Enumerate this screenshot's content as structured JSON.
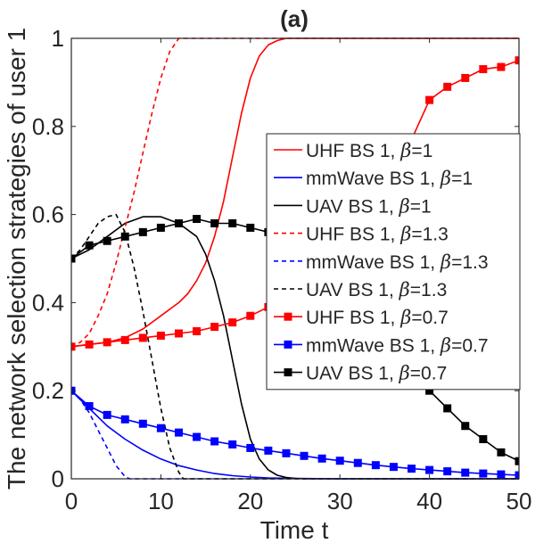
{
  "chart_data": {
    "type": "line",
    "title": "(a)",
    "xlabel": "Time t",
    "ylabel": "The network selection strategies of user 1",
    "xlim": [
      0,
      50
    ],
    "ylim": [
      0,
      1
    ],
    "xticks": [
      0,
      10,
      20,
      30,
      40,
      50
    ],
    "yticks": [
      0,
      0.2,
      0.4,
      0.6,
      0.8,
      1
    ],
    "xtick_labels": [
      "0",
      "10",
      "20",
      "30",
      "40",
      "50"
    ],
    "ytick_labels": [
      "0",
      "0.2",
      "0.4",
      "0.6",
      "0.8",
      "1"
    ],
    "grid": false,
    "legend_position": "right",
    "series": [
      {
        "name": "UHF BS 1, β=1",
        "legend_prefix": "UHF BS 1, ",
        "legend_param": "β",
        "legend_value": "=1",
        "color": "#ff0000",
        "dash": "solid",
        "marker": "none",
        "x": [
          0,
          2,
          4,
          6,
          8,
          10,
          12,
          13,
          14,
          15,
          16,
          17,
          18,
          19,
          20,
          21,
          22,
          23,
          24,
          25,
          27,
          30,
          35,
          40,
          45,
          50
        ],
        "y": [
          0.3,
          0.305,
          0.31,
          0.32,
          0.34,
          0.37,
          0.4,
          0.42,
          0.45,
          0.49,
          0.55,
          0.63,
          0.73,
          0.83,
          0.91,
          0.96,
          0.985,
          0.995,
          1.0,
          1.0,
          1.0,
          1.0,
          1.0,
          1.0,
          1.0,
          1.0
        ]
      },
      {
        "name": "mmWave BS 1, β=1",
        "legend_prefix": "mmWave BS 1, ",
        "legend_param": "β",
        "legend_value": "=1",
        "color": "#0000ff",
        "dash": "solid",
        "marker": "none",
        "x": [
          0,
          2,
          4,
          6,
          8,
          10,
          12,
          14,
          16,
          18,
          20,
          22,
          25,
          30,
          40,
          50
        ],
        "y": [
          0.2,
          0.16,
          0.12,
          0.09,
          0.065,
          0.045,
          0.03,
          0.02,
          0.012,
          0.007,
          0.004,
          0.002,
          0.001,
          0.0,
          0.0,
          0.0
        ]
      },
      {
        "name": "UAV BS 1, β=1",
        "legend_prefix": "UAV BS 1, ",
        "legend_param": "β",
        "legend_value": "=1",
        "color": "#000000",
        "dash": "solid",
        "marker": "none",
        "x": [
          0,
          2,
          4,
          6,
          8,
          10,
          12,
          14,
          15,
          16,
          17,
          18,
          19,
          20,
          21,
          22,
          23,
          24,
          25,
          26,
          27,
          28,
          30,
          35,
          40,
          50
        ],
        "y": [
          0.5,
          0.52,
          0.55,
          0.58,
          0.595,
          0.595,
          0.58,
          0.55,
          0.51,
          0.45,
          0.37,
          0.27,
          0.17,
          0.09,
          0.045,
          0.02,
          0.008,
          0.003,
          0.001,
          0.0,
          0.0,
          0.0,
          0.0,
          0.0,
          0.0,
          0.0
        ]
      },
      {
        "name": "UHF BS 1, β=1.3",
        "legend_prefix": "UHF BS 1, ",
        "legend_param": "β",
        "legend_value": "=1.3",
        "color": "#ff0000",
        "dash": "dashed",
        "marker": "none",
        "x": [
          0,
          1,
          2,
          3,
          4,
          5,
          6,
          7,
          8,
          9,
          10,
          11,
          12,
          13,
          20,
          30,
          40,
          50
        ],
        "y": [
          0.3,
          0.31,
          0.33,
          0.37,
          0.42,
          0.49,
          0.57,
          0.65,
          0.74,
          0.83,
          0.91,
          0.97,
          1.0,
          1.0,
          1.0,
          1.0,
          1.0,
          1.0
        ]
      },
      {
        "name": "mmWave BS 1, β=1.3",
        "legend_prefix": "mmWave BS 1, ",
        "legend_param": "β",
        "legend_value": "=1.3",
        "color": "#0000ff",
        "dash": "dashed",
        "marker": "none",
        "x": [
          0,
          1,
          2,
          3,
          4,
          5,
          6,
          6.5,
          10,
          20,
          30,
          40,
          50
        ],
        "y": [
          0.2,
          0.18,
          0.15,
          0.11,
          0.07,
          0.03,
          0.005,
          0.0,
          0.0,
          0.0,
          0.0,
          0.0,
          0.0
        ]
      },
      {
        "name": "UAV BS 1, β=1.3",
        "legend_prefix": "UAV BS 1, ",
        "legend_param": "β",
        "legend_value": "=1.3",
        "color": "#000000",
        "dash": "dashed",
        "marker": "none",
        "x": [
          0,
          1,
          2,
          3,
          4,
          5,
          6,
          7,
          8,
          9,
          10,
          11,
          12,
          12.5,
          20,
          30,
          40,
          50
        ],
        "y": [
          0.5,
          0.52,
          0.55,
          0.58,
          0.595,
          0.6,
          0.56,
          0.48,
          0.38,
          0.27,
          0.16,
          0.07,
          0.015,
          0.0,
          0.0,
          0.0,
          0.0,
          0.0
        ]
      },
      {
        "name": "UHF BS 1, β=0.7",
        "legend_prefix": "UHF BS 1, ",
        "legend_param": "β",
        "legend_value": "=0.7",
        "color": "#ff0000",
        "dash": "solid",
        "marker": "square",
        "x": [
          0,
          2,
          4,
          6,
          8,
          10,
          12,
          14,
          16,
          18,
          20,
          22,
          24,
          26,
          28,
          30,
          32,
          34,
          36,
          38,
          40,
          42,
          44,
          46,
          48,
          50
        ],
        "y": [
          0.3,
          0.305,
          0.31,
          0.315,
          0.32,
          0.325,
          0.33,
          0.335,
          0.345,
          0.355,
          0.37,
          0.39,
          0.42,
          0.45,
          0.49,
          0.53,
          0.58,
          0.64,
          0.7,
          0.77,
          0.86,
          0.89,
          0.91,
          0.93,
          0.935,
          0.95
        ]
      },
      {
        "name": "mmWave BS 1, β=0.7",
        "legend_prefix": "mmWave BS 1, ",
        "legend_param": "β",
        "legend_value": "=0.7",
        "color": "#0000ff",
        "dash": "solid",
        "marker": "square",
        "x": [
          0,
          2,
          4,
          6,
          8,
          10,
          12,
          14,
          16,
          18,
          20,
          22,
          24,
          26,
          28,
          30,
          32,
          34,
          36,
          38,
          40,
          42,
          44,
          46,
          48,
          50
        ],
        "y": [
          0.2,
          0.165,
          0.145,
          0.135,
          0.125,
          0.115,
          0.105,
          0.095,
          0.085,
          0.078,
          0.07,
          0.064,
          0.058,
          0.052,
          0.046,
          0.041,
          0.036,
          0.031,
          0.027,
          0.023,
          0.02,
          0.017,
          0.014,
          0.012,
          0.01,
          0.008
        ]
      },
      {
        "name": "UAV BS 1, β=0.7",
        "legend_prefix": "UAV BS 1, ",
        "legend_param": "β",
        "legend_value": "=0.7",
        "color": "#000000",
        "dash": "solid",
        "marker": "square",
        "x": [
          0,
          2,
          4,
          6,
          8,
          10,
          12,
          14,
          16,
          18,
          20,
          22,
          24,
          26,
          28,
          30,
          32,
          34,
          36,
          38,
          40,
          42,
          44,
          46,
          48,
          50
        ],
        "y": [
          0.5,
          0.53,
          0.54,
          0.55,
          0.56,
          0.57,
          0.58,
          0.59,
          0.58,
          0.58,
          0.57,
          0.56,
          0.54,
          0.52,
          0.49,
          0.45,
          0.4,
          0.35,
          0.3,
          0.25,
          0.2,
          0.16,
          0.12,
          0.09,
          0.06,
          0.04
        ]
      }
    ]
  }
}
